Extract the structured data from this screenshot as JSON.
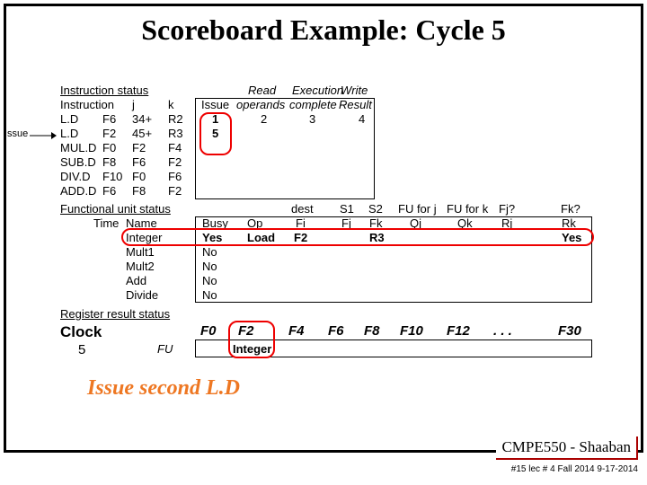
{
  "title": "Scoreboard Example:  Cycle 5",
  "issue_label": "Issue",
  "section_instr_status": "Instruction status",
  "th_instr": "Instruction",
  "th_j": "j",
  "th_k": "k",
  "th_issue": "Issue",
  "th_read": "Read",
  "th_oper": "operands",
  "th_exec": "Execution",
  "th_comp": "complete",
  "th_write": "Write",
  "th_result": "Result",
  "instr": [
    {
      "op": "L.D",
      "fi": "F6",
      "j": "34+",
      "k": "R2",
      "iss": "1",
      "rd": "2",
      "ex": "3",
      "wr": "4"
    },
    {
      "op": "L.D",
      "fi": "F2",
      "j": "45+",
      "k": "R3",
      "iss": "5",
      "rd": "",
      "ex": "",
      "wr": ""
    },
    {
      "op": "MUL.D",
      "fi": "F0",
      "j": "F2",
      "k": "F4",
      "iss": "",
      "rd": "",
      "ex": "",
      "wr": ""
    },
    {
      "op": "SUB.D",
      "fi": "F8",
      "j": "F6",
      "k": "F2",
      "iss": "",
      "rd": "",
      "ex": "",
      "wr": ""
    },
    {
      "op": "DIV.D",
      "fi": "F10",
      "j": "F0",
      "k": "F6",
      "iss": "",
      "rd": "",
      "ex": "",
      "wr": ""
    },
    {
      "op": "ADD.D",
      "fi": "F6",
      "j": "F8",
      "k": "F2",
      "iss": "",
      "rd": "",
      "ex": "",
      "wr": ""
    }
  ],
  "section_fu_status": "Functional unit status",
  "fu_th": {
    "time": "Time",
    "name": "Name",
    "busy": "Busy",
    "op": "Op",
    "dest": "dest",
    "fi": "Fi",
    "s1": "S1",
    "fj": "Fj",
    "s2": "S2",
    "fk": "Fk",
    "fuj": "FU for j",
    "qj": "Qj",
    "fuk": "FU for k",
    "qk": "Qk",
    "fjq": "Fj?",
    "rj": "Rj",
    "fkq": "Fk?",
    "rk": "Rk"
  },
  "fu": [
    {
      "name": "Integer",
      "busy": "Yes",
      "op": "Load",
      "fi": "F2",
      "fj": "",
      "fk": "R3",
      "qj": "",
      "qk": "",
      "rj": "",
      "rk": "Yes"
    },
    {
      "name": "Mult1",
      "busy": "No",
      "op": "",
      "fi": "",
      "fj": "",
      "fk": "",
      "qj": "",
      "qk": "",
      "rj": "",
      "rk": ""
    },
    {
      "name": "Mult2",
      "busy": "No",
      "op": "",
      "fi": "",
      "fj": "",
      "fk": "",
      "qj": "",
      "qk": "",
      "rj": "",
      "rk": ""
    },
    {
      "name": "Add",
      "busy": "No",
      "op": "",
      "fi": "",
      "fj": "",
      "fk": "",
      "qj": "",
      "qk": "",
      "rj": "",
      "rk": ""
    },
    {
      "name": "Divide",
      "busy": "No",
      "op": "",
      "fi": "",
      "fj": "",
      "fk": "",
      "qj": "",
      "qk": "",
      "rj": "",
      "rk": ""
    }
  ],
  "section_reg_status": "Register result status",
  "clock_label": "Clock",
  "clock_value": "5",
  "fu_label": "FU",
  "regs": [
    "F0",
    "F2",
    "F4",
    "F6",
    "F8",
    "F10",
    "F12",
    ". . .",
    "F30"
  ],
  "reg_vals": [
    "",
    "Integer",
    "",
    "",
    "",
    "",
    "",
    "",
    ""
  ],
  "footnote": "Issue second L.D",
  "course": "CMPE550 - Shaaban",
  "pageline": "#15   lec # 4 Fall 2014   9-17-2014"
}
